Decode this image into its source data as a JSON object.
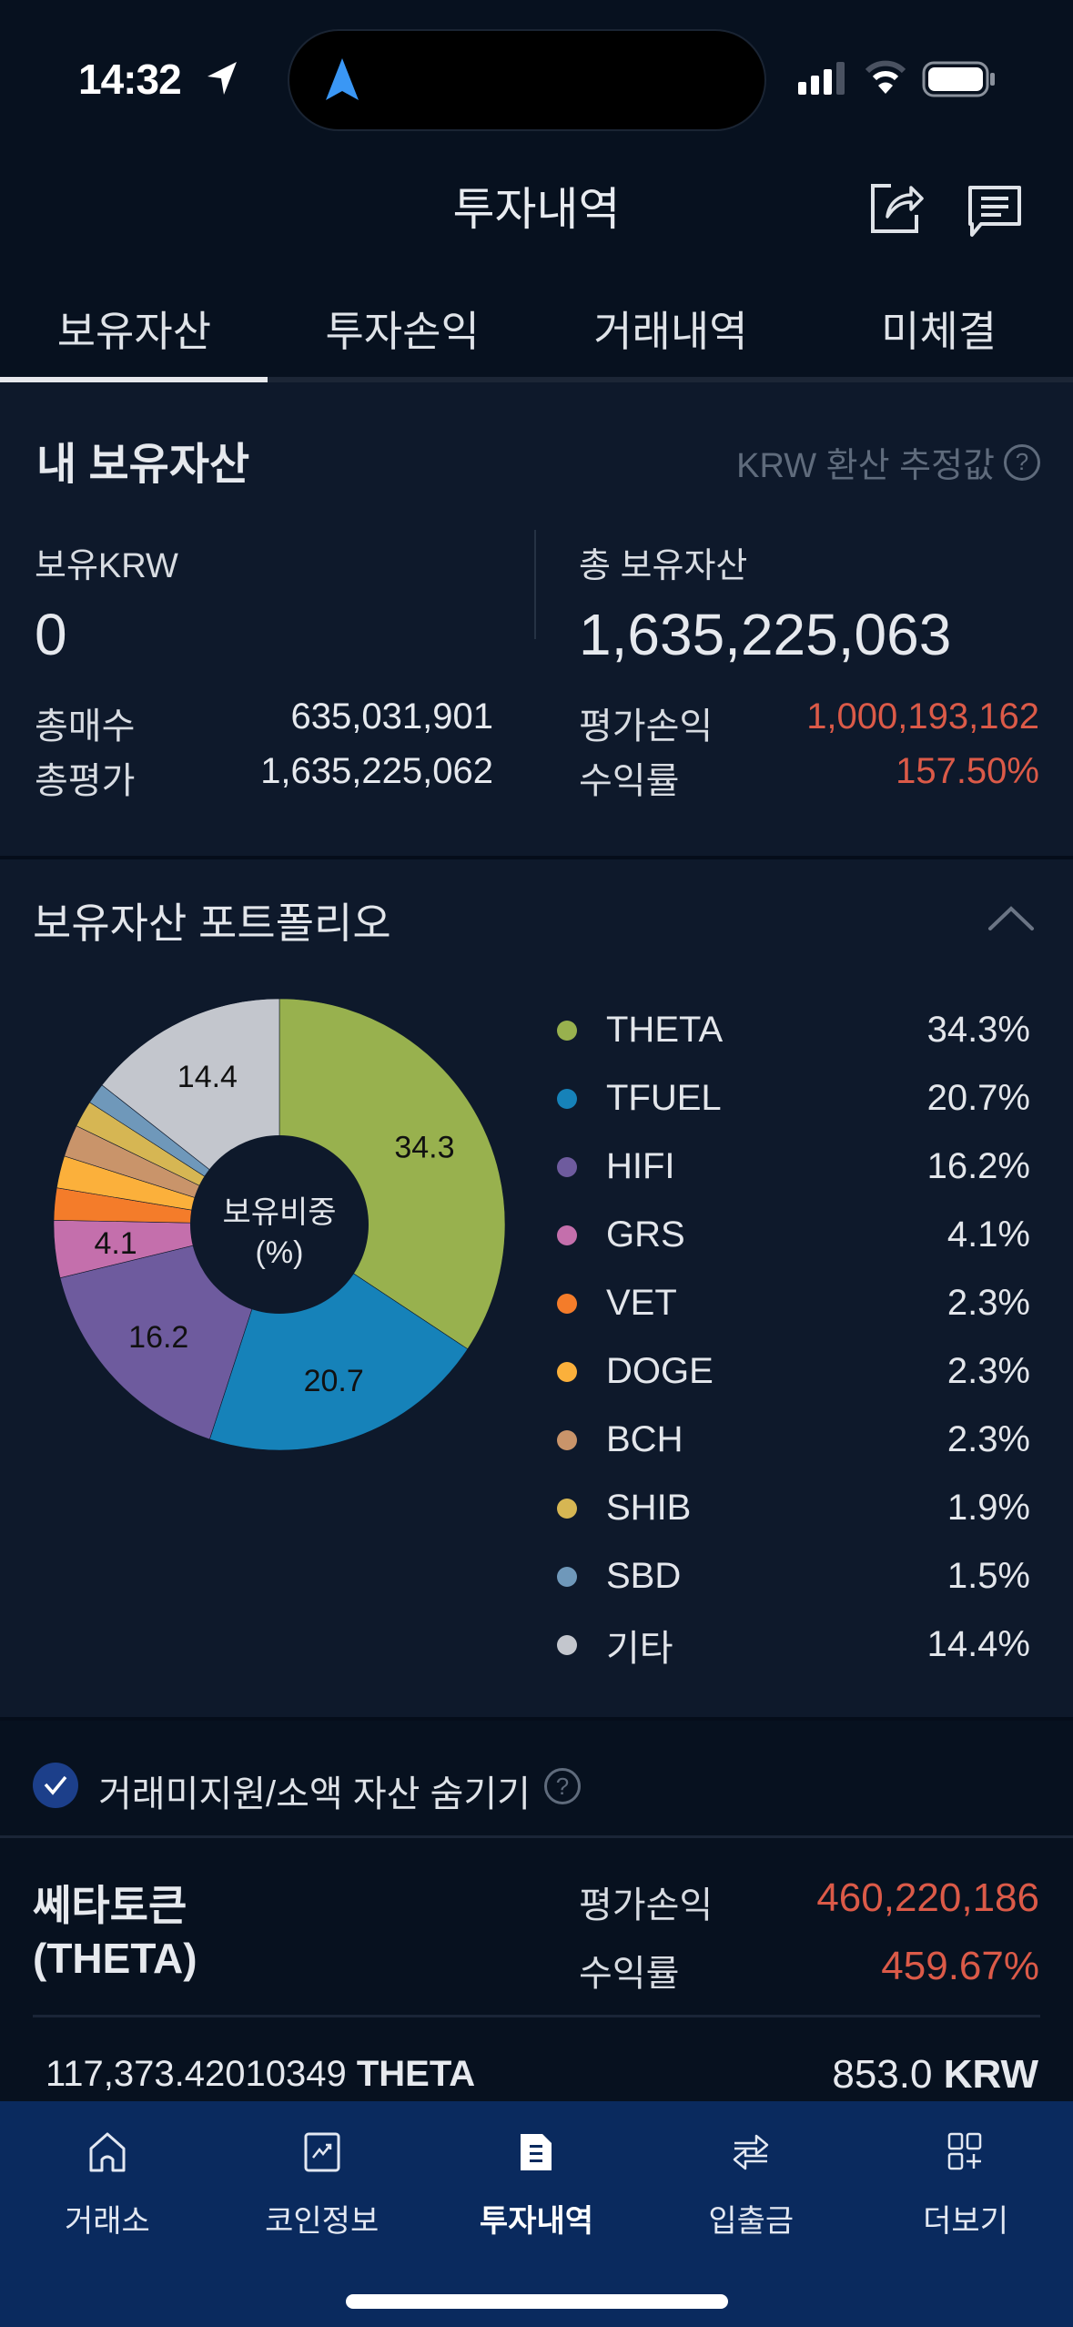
{
  "status_bar": {
    "time": "14:32",
    "icons": [
      "location-arrow-icon",
      "navigation-arrow-icon",
      "signal-icon",
      "wifi-icon",
      "battery-icon"
    ]
  },
  "header": {
    "title": "투자내역",
    "actions": [
      "share-icon",
      "chat-icon"
    ]
  },
  "tabs": [
    {
      "label": "보유자산",
      "active": true
    },
    {
      "label": "투자손익",
      "active": false
    },
    {
      "label": "거래내역",
      "active": false
    },
    {
      "label": "미체결",
      "active": false
    }
  ],
  "summary": {
    "title": "내 보유자산",
    "note": "KRW 환산 추정값",
    "note_icon": "question-icon",
    "krw_label": "보유KRW",
    "krw_value": "0",
    "total_label": "총 보유자산",
    "total_value": "1,635,225,063",
    "total_buy_label": "총매수",
    "total_buy_value": "635,031,901",
    "total_eval_label": "총평가",
    "total_eval_value": "1,635,225,062",
    "pnl_label": "평가손익",
    "pnl_value": "1,000,193,162",
    "return_label": "수익률",
    "return_value": "157.50%",
    "accent_red": "#db5a48"
  },
  "portfolio": {
    "title": "보유자산 포트폴리오",
    "collapse_icon": "chevron-up-icon",
    "center_label_1": "보유비중",
    "center_label_2": "(%)"
  },
  "chart_data": {
    "type": "pie",
    "title": "보유자산 포트폴리오",
    "center_label": "보유비중 (%)",
    "categories": [
      "THETA",
      "TFUEL",
      "HIFI",
      "GRS",
      "VET",
      "DOGE",
      "BCH",
      "SHIB",
      "SBD",
      "기타"
    ],
    "values": [
      34.3,
      20.7,
      16.2,
      4.1,
      2.3,
      2.3,
      2.3,
      1.9,
      1.5,
      14.4
    ],
    "labels": [
      "34.3%",
      "20.7%",
      "16.2%",
      "4.1%",
      "2.3%",
      "2.3%",
      "2.3%",
      "1.9%",
      "1.5%",
      "14.4%"
    ],
    "slice_labels": [
      "34.3",
      "20.7",
      "16.2",
      "4.1",
      "",
      "",
      "",
      "",
      "",
      "14.4"
    ],
    "colors": [
      "#98b14e",
      "#1682b9",
      "#6e5b9e",
      "#c46fac",
      "#f47c2a",
      "#fbb03b",
      "#c9946a",
      "#d6b653",
      "#6f98ba",
      "#c3c6cd"
    ],
    "legend_position": "right",
    "donut": true
  },
  "hide_toggle": {
    "checked": true,
    "label": "거래미지원/소액 자산 숨기기",
    "icon": "question-icon"
  },
  "asset": {
    "name_line1": "쎄타토큰",
    "name_line2": "(THETA)",
    "pnl_label": "평가손익",
    "pnl_value": "460,220,186",
    "return_label": "수익률",
    "return_value": "459.67%",
    "quantity": "117,373.42010349",
    "quantity_unit": "THETA",
    "avg_price": "853.0",
    "avg_price_unit": "KRW"
  },
  "bottom_nav": [
    {
      "label": "거래소",
      "icon": "home-icon",
      "active": false
    },
    {
      "label": "코인정보",
      "icon": "chart-icon",
      "active": false
    },
    {
      "label": "투자내역",
      "icon": "document-icon",
      "active": true
    },
    {
      "label": "입출금",
      "icon": "transfer-icon",
      "active": false
    },
    {
      "label": "더보기",
      "icon": "more-grid-icon",
      "active": false
    }
  ]
}
